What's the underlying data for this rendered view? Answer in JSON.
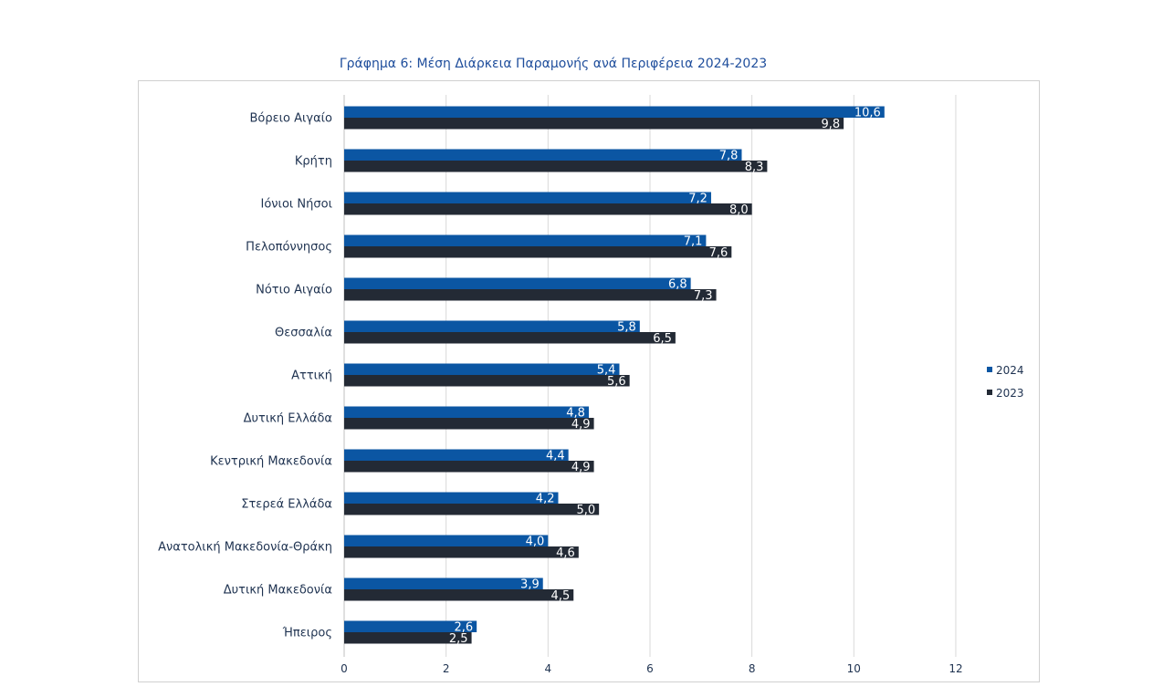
{
  "chart_data": {
    "type": "bar",
    "orientation": "horizontal",
    "title": "Γράφημα 6: Μέση Διάρκεια Παραμονής ανά Περιφέρεια 2024-2023",
    "categories": [
      "Βόρειο Αιγαίο",
      "Κρήτη",
      "Ιόνιοι Νήσοι",
      "Πελοπόννησος",
      "Νότιο Αιγαίο",
      "Θεσσαλία",
      "Αττική",
      "Δυτική Ελλάδα",
      "Κεντρική Μακεδονία",
      "Στερεά Ελλάδα",
      "Ανατολική Μακεδονία-Θράκη",
      "Δυτική Μακεδονία",
      "Ήπειρος"
    ],
    "series": [
      {
        "name": "2024",
        "color": "#0b56a3",
        "values": [
          10.6,
          7.8,
          7.2,
          7.1,
          6.8,
          5.8,
          5.4,
          4.8,
          4.4,
          4.2,
          4.0,
          3.9,
          2.6
        ],
        "labels": [
          "10,6",
          "7,8",
          "7,2",
          "7,1",
          "6,8",
          "5,8",
          "5,4",
          "4,8",
          "4,4",
          "4,2",
          "4,0",
          "3,9",
          "2,6"
        ]
      },
      {
        "name": "2023",
        "color": "#232a35",
        "values": [
          9.8,
          8.3,
          8.0,
          7.6,
          7.3,
          6.5,
          5.6,
          4.9,
          4.9,
          5.0,
          4.6,
          4.5,
          2.5
        ],
        "labels": [
          "9,8",
          "8,3",
          "8,0",
          "7,6",
          "7,3",
          "6,5",
          "5,6",
          "4,9",
          "4,9",
          "5,0",
          "4,6",
          "4,5",
          "2,5"
        ]
      }
    ],
    "xticks": [
      "0",
      "2",
      "4",
      "6",
      "8",
      "10",
      "12"
    ],
    "xlim": [
      0,
      12
    ],
    "grid": true,
    "legend_position": "right"
  },
  "colors": {
    "series_2024": "#0b56a3",
    "series_2023": "#232a35",
    "text": "#1e3250",
    "title": "#1f4e9c",
    "grid": "#d9d9d9"
  }
}
